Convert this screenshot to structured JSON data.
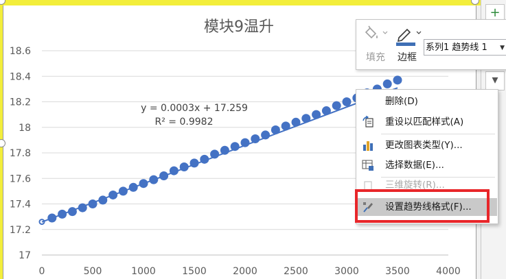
{
  "chart_data": {
    "type": "scatter",
    "title": "模块9温升",
    "xlabel": "",
    "ylabel": "",
    "xlim": [
      0,
      4000
    ],
    "ylim": [
      17,
      18.6
    ],
    "x_ticks": [
      "0",
      "500",
      "1000",
      "1500",
      "2000",
      "2500",
      "3000",
      "3500",
      "4000"
    ],
    "y_ticks": [
      "17",
      "17.2",
      "17.4",
      "17.6",
      "17.8",
      "18",
      "18.2",
      "18.4",
      "18.6"
    ],
    "grid": "horizontal",
    "legend": "none",
    "series_color": "#4472c4",
    "trendline": {
      "equation": "y = 0.0003x + 17.259",
      "r_squared": "R² = 0.9982",
      "slope": 0.0003,
      "intercept": 17.259
    },
    "x": [
      0,
      100,
      200,
      300,
      400,
      500,
      600,
      700,
      800,
      900,
      1000,
      1100,
      1200,
      1300,
      1400,
      1500,
      1600,
      1700,
      1800,
      1900,
      2000,
      2100,
      2200,
      2300,
      2400,
      2500,
      2600,
      2700,
      2800,
      2900,
      3000,
      3100,
      3200,
      3300,
      3400,
      3500
    ],
    "y": [
      17.26,
      17.29,
      17.32,
      17.34,
      17.37,
      17.4,
      17.43,
      17.47,
      17.5,
      17.53,
      17.56,
      17.59,
      17.62,
      17.66,
      17.69,
      17.72,
      17.75,
      17.79,
      17.82,
      17.85,
      17.88,
      17.91,
      17.94,
      17.98,
      18.01,
      18.04,
      18.07,
      18.1,
      18.13,
      18.17,
      18.2,
      18.23,
      18.27,
      18.3,
      18.34,
      18.37
    ]
  },
  "toolbar": {
    "fill_label": "填充",
    "border_label": "边框",
    "series_selected": "系列1 趋势线 1"
  },
  "context_menu": {
    "items": [
      {
        "label": "删除(D)",
        "icon": "delete-icon",
        "disabled": false
      },
      {
        "label": "重设以匹配样式(A)",
        "icon": "reset-style-icon",
        "disabled": false
      },
      {
        "label": "更改图表类型(Y)...",
        "icon": "chart-type-icon",
        "disabled": false
      },
      {
        "label": "选择数据(E)...",
        "icon": "select-data-icon",
        "disabled": false
      },
      {
        "label": "三维旋转(R)...",
        "icon": "3d-rotate-icon",
        "disabled": true
      },
      {
        "label": "设置趋势线格式(F)...",
        "icon": "format-trendline-icon",
        "disabled": false,
        "highlighted": true
      }
    ]
  },
  "side_panel": {
    "add_label": "+"
  }
}
